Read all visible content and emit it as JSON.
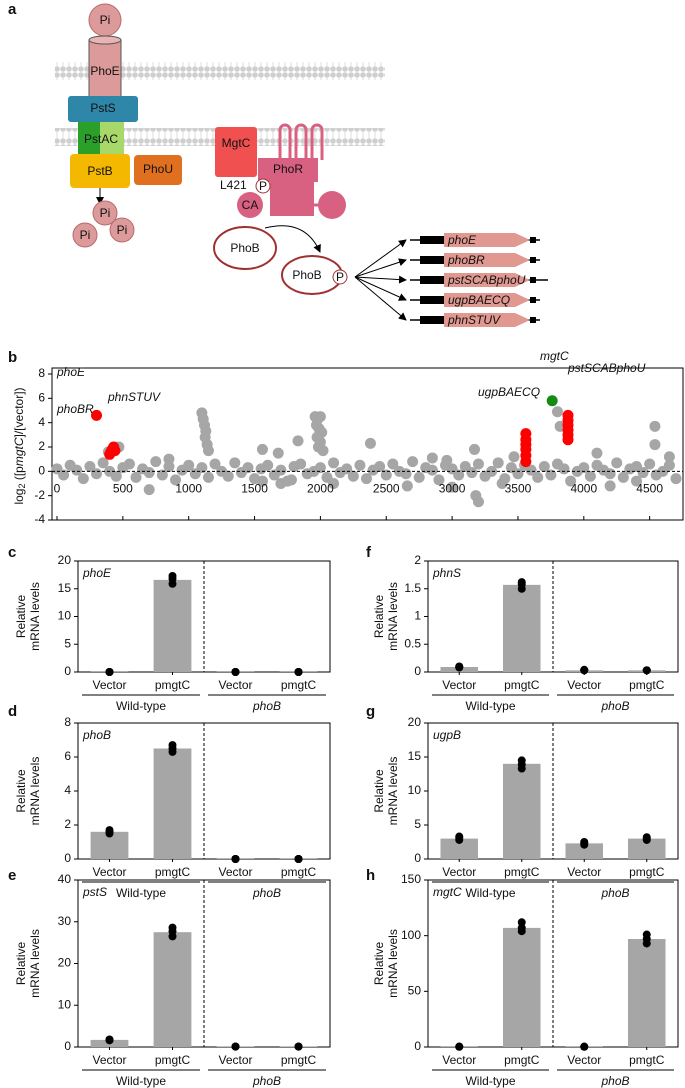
{
  "diagram": {
    "panel": "a",
    "pi_top": "Pi",
    "phoE": "PhoE",
    "pstS": "PstS",
    "pstAC": "PstAC",
    "pstB": "PstB",
    "phoU": "PhoU",
    "pi_out": [
      "Pi",
      "Pi",
      "Pi"
    ],
    "mgtC": "MgtC",
    "phoR": "PhoR",
    "residue": "L421",
    "phospho": [
      "P",
      "P"
    ],
    "ca": "CA",
    "phoB": [
      "PhoB",
      "PhoB"
    ],
    "operons": [
      "phoE",
      "phoBR",
      "pstSCABphoU",
      "ugpBAECQ",
      "phnSTUV"
    ]
  },
  "chart_data": [
    {
      "type": "scatter",
      "panel": "b",
      "ylabel": [
        "log",
        "2",
        " ([p",
        "mgtC",
        "]/[vector])"
      ],
      "xlim": [
        0,
        4700
      ],
      "xticks": [
        0,
        500,
        1000,
        1500,
        2000,
        2500,
        3000,
        3500,
        4000,
        4500
      ],
      "ylim": [
        -4,
        8
      ],
      "yticks": [
        -4,
        -2,
        0,
        2,
        4,
        6,
        8
      ],
      "zero_line": true,
      "series": [
        {
          "color": "#a6a6a6",
          "x": [
            0,
            50,
            100,
            150,
            200,
            250,
            300,
            350,
            400,
            450,
            500,
            550,
            600,
            650,
            700,
            750,
            800,
            850,
            900,
            950,
            1000,
            1050,
            1100,
            1150,
            1200,
            1250,
            1300,
            1350,
            1400,
            1450,
            1500,
            1550,
            1600,
            1650,
            1700,
            1750,
            1800,
            1850,
            1900,
            1950,
            2000,
            2050,
            2100,
            2150,
            2200,
            2250,
            2300,
            2350,
            2400,
            2450,
            2500,
            2550,
            2600,
            2650,
            2700,
            2750,
            2800,
            2850,
            2900,
            2950,
            3000,
            3050,
            3100,
            3150,
            3200,
            3250,
            3300,
            3350,
            3400,
            3450,
            3500,
            3550,
            3600,
            3650,
            3700,
            3750,
            3800,
            3850,
            3900,
            3950,
            4000,
            4050,
            4100,
            4150,
            4200,
            4250,
            4300,
            4350,
            4400,
            4450,
            4500,
            4550,
            4600,
            4650,
            4700,
            1100,
            1110,
            1120,
            1130,
            1125,
            1140,
            1150,
            1560,
            1560,
            1680,
            1700,
            1830,
            1780,
            1960,
            1980,
            2000,
            1970,
            1990,
            2010,
            1975,
            2000,
            1985,
            2020,
            2380,
            2660,
            2850,
            3000,
            3180,
            3200,
            3170,
            3380,
            3470,
            3800,
            3820,
            4100,
            4200,
            4540,
            4540,
            390,
            470,
            700,
            850,
            2100,
            2960,
            4400,
            4650
          ],
          "values": [
            0.2,
            -0.3,
            0.5,
            0.1,
            -0.6,
            0.4,
            -0.2,
            0.7,
            0.0,
            -0.4,
            0.3,
            0.6,
            -0.5,
            0.2,
            -0.1,
            0.8,
            -0.3,
            0.4,
            -0.7,
            0.1,
            0.5,
            -0.2,
            0.3,
            -0.5,
            0.6,
            0.0,
            -0.4,
            0.7,
            -0.1,
            0.3,
            -0.6,
            0.2,
            0.5,
            -0.3,
            0.1,
            -0.8,
            0.4,
            0.6,
            -0.2,
            0.0,
            0.3,
            -0.5,
            0.7,
            -0.1,
            0.2,
            -0.4,
            0.5,
            -0.6,
            0.1,
            0.4,
            -0.3,
            0.6,
            0.0,
            -0.2,
            0.8,
            -0.5,
            0.3,
            0.1,
            -0.7,
            0.5,
            0.2,
            -0.3,
            0.4,
            -0.1,
            0.6,
            -0.4,
            0.0,
            0.7,
            -0.6,
            0.3,
            -0.2,
            0.5,
            0.1,
            -0.5,
            0.4,
            -0.3,
            0.6,
            0.2,
            -0.8,
            0.0,
            0.3,
            -0.4,
            0.5,
            0.1,
            -0.2,
            0.7,
            -0.5,
            0.2,
            0.4,
            -0.1,
            0.6,
            -0.3,
            0.0,
            0.5,
            -0.6,
            4.8,
            4.3,
            3.8,
            3.3,
            2.8,
            2.2,
            1.7,
            1.8,
            -0.8,
            1.5,
            -1.0,
            2.5,
            -0.7,
            4.5,
            4.3,
            4.5,
            3.8,
            3.5,
            3.2,
            2.8,
            2.4,
            2.0,
            1.7,
            2.3,
            -1.2,
            1.1,
            -1.3,
            -2.0,
            -2.5,
            1.8,
            -1.0,
            1.2,
            4.9,
            3.7,
            1.5,
            -1.2,
            3.7,
            2.2,
            1.6,
            2.0,
            -1.5,
            1.0,
            -1.0,
            0.9,
            -0.8,
            1.2
          ]
        },
        {
          "color": "#ff0000",
          "x": [
            300,
            400,
            410,
            420,
            430,
            440,
            3560,
            3560,
            3560,
            3560,
            3560,
            3560,
            3880,
            3880,
            3880,
            3880,
            3880,
            3880
          ],
          "values": [
            4.6,
            1.4,
            1.6,
            1.8,
            2.0,
            1.7,
            3.1,
            2.6,
            2.2,
            1.8,
            1.3,
            0.8,
            4.6,
            4.2,
            3.8,
            3.4,
            3.0,
            2.6
          ]
        },
        {
          "color": "#148c14",
          "x": [
            3760
          ],
          "values": [
            5.8
          ]
        }
      ],
      "annotations": [
        "phoE",
        "phoBR",
        "phnSTUV",
        "ugpBAECQ",
        "mgtC",
        "pstSCABphoU"
      ]
    },
    {
      "type": "bar",
      "panel": "c",
      "title": "phoE",
      "ylabel": [
        "Relative",
        "mRNA levels"
      ],
      "categories": [
        "Vector",
        "pmgtC",
        "Vector",
        "pmgtC"
      ],
      "groups": [
        "Wild-type",
        "phoB"
      ],
      "values": [
        0.05,
        16.6,
        0.05,
        0.05
      ],
      "replicates": [
        [
          0,
          0,
          0
        ],
        [
          15.9,
          16.8,
          17.3
        ],
        [
          0,
          0,
          0
        ],
        [
          0,
          0,
          0
        ]
      ],
      "color": "#a6a6a6",
      "point_color": "#000000",
      "ylim": [
        0,
        20
      ],
      "yticks": [
        0,
        5,
        10,
        15,
        20
      ]
    },
    {
      "type": "bar",
      "panel": "d",
      "title": "phoB",
      "ylabel": [
        "Relative",
        "mRNA levels"
      ],
      "categories": [
        "Vector",
        "pmgtC",
        "Vector",
        "pmgtC"
      ],
      "groups": [
        "Wild-type",
        "phoB"
      ],
      "values": [
        1.6,
        6.5,
        0.02,
        0.02
      ],
      "replicates": [
        [
          1.5,
          1.6,
          1.7
        ],
        [
          6.3,
          6.5,
          6.7
        ],
        [
          0,
          0,
          0
        ],
        [
          0,
          0,
          0
        ]
      ],
      "color": "#a6a6a6",
      "point_color": "#000000",
      "ylim": [
        0,
        8
      ],
      "yticks": [
        0,
        2,
        4,
        6,
        8
      ]
    },
    {
      "type": "bar",
      "panel": "e",
      "title": "pstS",
      "ylabel": [
        "Relative",
        "mRNA levels"
      ],
      "categories": [
        "Vector",
        "pmgtC",
        "Vector",
        "pmgtC"
      ],
      "groups": [
        "Wild-type",
        "phoB"
      ],
      "values": [
        1.7,
        27.5,
        0.1,
        0.1
      ],
      "replicates": [
        [
          1.6,
          1.7,
          1.8
        ],
        [
          26.5,
          27.7,
          28.6
        ],
        [
          0.1,
          0.1,
          0.1
        ],
        [
          0.1,
          0.1,
          0.1
        ]
      ],
      "color": "#a6a6a6",
      "point_color": "#000000",
      "ylim": [
        0,
        40
      ],
      "yticks": [
        0,
        10,
        20,
        30,
        40
      ]
    },
    {
      "type": "bar",
      "panel": "f",
      "title": "phnS",
      "ylabel": [
        "Relative",
        "mRNA levels"
      ],
      "categories": [
        "Vector",
        "pmgtC",
        "Vector",
        "pmgtC"
      ],
      "groups": [
        "Wild-type",
        "phoB"
      ],
      "values": [
        0.09,
        1.57,
        0.03,
        0.03
      ],
      "replicates": [
        [
          0.08,
          0.1,
          0.09
        ],
        [
          1.5,
          1.58,
          1.62
        ],
        [
          0.03,
          0.03,
          0.04
        ],
        [
          0.03,
          0.03,
          0.03
        ]
      ],
      "color": "#a6a6a6",
      "point_color": "#000000",
      "ylim": [
        0,
        2
      ],
      "yticks": [
        0,
        0.5,
        1,
        1.5,
        2
      ]
    },
    {
      "type": "bar",
      "panel": "g",
      "title": "ugpB",
      "ylabel": [
        "Relative",
        "mRNA levels"
      ],
      "categories": [
        "Vector",
        "pmgtC",
        "Vector",
        "pmgtC"
      ],
      "groups": [
        "Wild-type",
        "phoB"
      ],
      "values": [
        3,
        14,
        2.3,
        3
      ],
      "replicates": [
        [
          2.8,
          3.1,
          3.3
        ],
        [
          13.3,
          13.9,
          14.5
        ],
        [
          2.1,
          2.3,
          2.5
        ],
        [
          2.8,
          3,
          3.2
        ]
      ],
      "color": "#a6a6a6",
      "point_color": "#000000",
      "ylim": [
        0,
        20
      ],
      "yticks": [
        0,
        5,
        10,
        15,
        20
      ]
    },
    {
      "type": "bar",
      "panel": "h",
      "title": "mgtC",
      "ylabel": [
        "Relative",
        "mRNA levels"
      ],
      "categories": [
        "Vector",
        "pmgtC",
        "Vector",
        "pmgtC"
      ],
      "groups": [
        "Wild-type",
        "phoB"
      ],
      "values": [
        0.3,
        107,
        0.3,
        97
      ],
      "replicates": [
        [
          0.2,
          0.3,
          0.3
        ],
        [
          104,
          107,
          112
        ],
        [
          0.2,
          0.3,
          0.3
        ],
        [
          93,
          97,
          101
        ]
      ],
      "color": "#a6a6a6",
      "point_color": "#000000",
      "ylim": [
        0,
        150
      ],
      "yticks": [
        0,
        50,
        100,
        150
      ]
    }
  ]
}
